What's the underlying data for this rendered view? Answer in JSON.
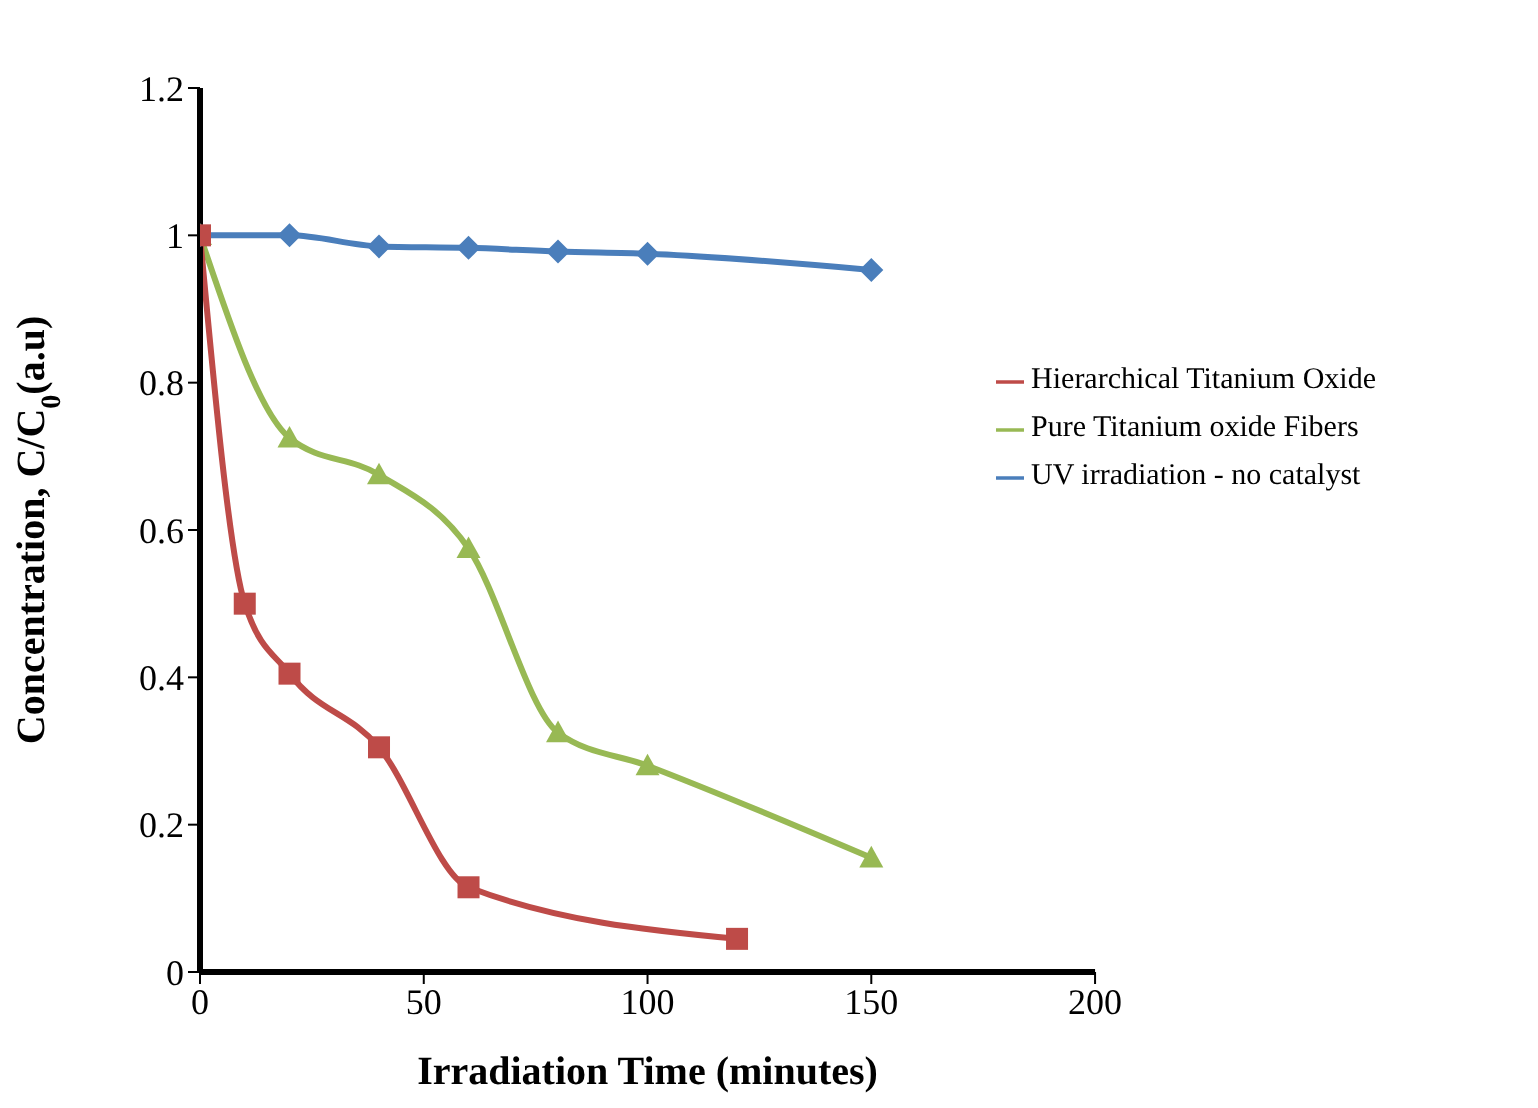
{
  "chart_data": {
    "type": "line",
    "xlabel": "Irradiation Time (minutes)",
    "ylabel": "Concentration, C/C$_{0}$(a.u)",
    "xlim": [
      0,
      200
    ],
    "xticks": [
      0,
      50,
      100,
      150,
      200
    ],
    "ylim": [
      0,
      1.2
    ],
    "yticks": [
      0,
      0.2,
      0.4,
      0.6,
      0.8,
      1,
      1.2
    ],
    "grid": false,
    "legend": "right",
    "line_style": "solid",
    "series": [
      {
        "name": "UV  irradiation - no catalyst",
        "color": "#4a7ebb",
        "marker": "diamond",
        "x": [
          0,
          20,
          40,
          60,
          80,
          100,
          150
        ],
        "values": [
          1,
          1,
          0.985,
          0.983,
          0.978,
          0.975,
          0.953
        ]
      },
      {
        "name": "Pure Titanium oxide Fibers",
        "color": "#98b954",
        "marker": "triangle",
        "x": [
          0,
          20,
          40,
          60,
          80,
          100,
          150
        ],
        "values": [
          1,
          0.725,
          0.675,
          0.575,
          0.325,
          0.28,
          0.155
        ]
      },
      {
        "name": "Hierarchical Titanium Oxide",
        "color": "#be4b48",
        "marker": "square",
        "x": [
          0,
          10,
          20,
          40,
          60,
          120
        ],
        "values": [
          1,
          0.5,
          0.405,
          0.305,
          0.115,
          0.045
        ]
      }
    ]
  }
}
